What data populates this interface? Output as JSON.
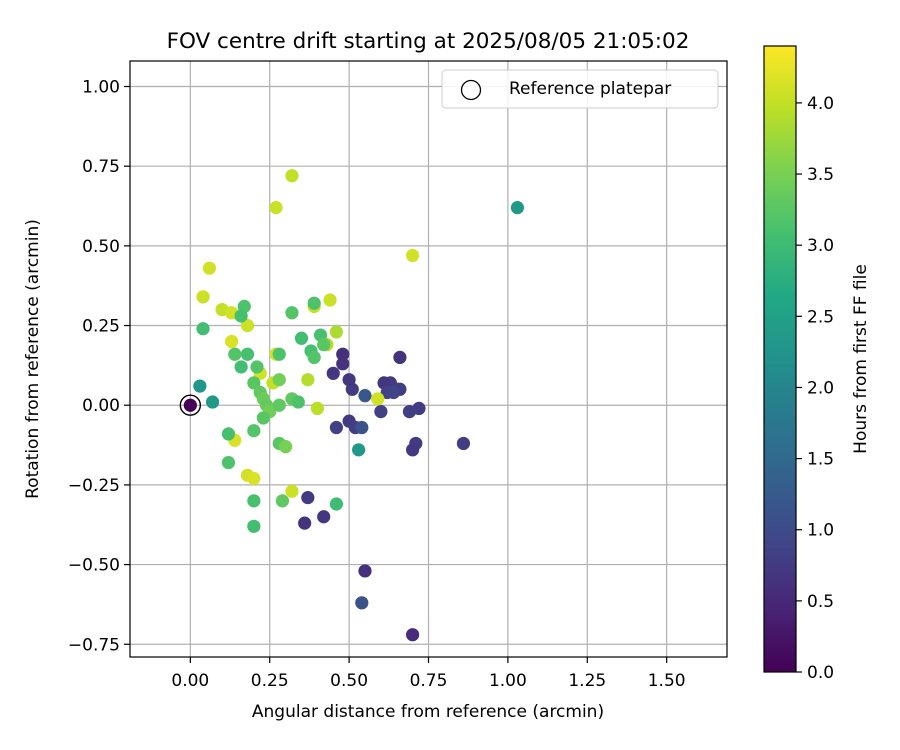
{
  "chart_data": {
    "type": "scatter",
    "title": "FOV centre drift starting at 2025/08/05 21:05:02",
    "xlabel": "Angular distance from reference (arcmin)",
    "ylabel": "Rotation from reference (arcmin)",
    "xlim": [
      -0.19,
      1.69
    ],
    "ylim": [
      -0.79,
      1.08
    ],
    "x_ticks": [
      0.0,
      0.25,
      0.5,
      0.75,
      1.0,
      1.25,
      1.5
    ],
    "x_tick_labels": [
      "0.00",
      "0.25",
      "0.50",
      "0.75",
      "1.00",
      "1.25",
      "1.50"
    ],
    "y_ticks": [
      1.0,
      0.75,
      0.5,
      0.25,
      0.0,
      -0.25,
      -0.5,
      -0.75
    ],
    "y_tick_labels": [
      "1.00",
      "0.75",
      "0.50",
      "0.25",
      "0.00",
      "−0.25",
      "−0.50",
      "−0.75"
    ],
    "grid": true,
    "legend": {
      "position": "top-right",
      "entries": [
        {
          "label": "Reference platepar",
          "marker": "hollow-circle"
        }
      ]
    },
    "colorbar": {
      "label": "Hours from first FF file",
      "colormap": "viridis",
      "range": [
        0.0,
        4.4
      ],
      "ticks": [
        0.0,
        0.5,
        1.0,
        1.5,
        2.0,
        2.5,
        3.0,
        3.5,
        4.0
      ],
      "tick_labels": [
        "0.0",
        "0.5",
        "1.0",
        "1.5",
        "2.0",
        "2.5",
        "3.0",
        "3.5",
        "4.0"
      ],
      "stops": [
        "#440154",
        "#482475",
        "#414487",
        "#355f8d",
        "#2a788e",
        "#21918c",
        "#22a884",
        "#44bf70",
        "#7ad151",
        "#bddf26",
        "#fde725"
      ]
    },
    "reference_point": {
      "x": 0.0,
      "y": 0.0
    },
    "points": [
      {
        "x": 0.0,
        "y": 0.0,
        "h": 0.02
      },
      {
        "x": 0.7,
        "y": -0.72,
        "h": 0.55
      },
      {
        "x": 0.55,
        "y": -0.52,
        "h": 0.6
      },
      {
        "x": 0.36,
        "y": -0.37,
        "h": 0.65
      },
      {
        "x": 0.42,
        "y": -0.35,
        "h": 0.7
      },
      {
        "x": 0.37,
        "y": -0.29,
        "h": 0.75
      },
      {
        "x": 0.54,
        "y": -0.62,
        "h": 1.1
      },
      {
        "x": 0.86,
        "y": -0.12,
        "h": 0.8
      },
      {
        "x": 0.71,
        "y": -0.12,
        "h": 0.75
      },
      {
        "x": 0.7,
        "y": -0.14,
        "h": 0.7
      },
      {
        "x": 0.72,
        "y": -0.01,
        "h": 0.75
      },
      {
        "x": 0.69,
        "y": -0.02,
        "h": 0.8
      },
      {
        "x": 0.65,
        "y": 0.05,
        "h": 0.7
      },
      {
        "x": 0.66,
        "y": 0.15,
        "h": 0.65
      },
      {
        "x": 0.63,
        "y": 0.07,
        "h": 0.75
      },
      {
        "x": 0.61,
        "y": 0.07,
        "h": 0.7
      },
      {
        "x": 0.62,
        "y": 0.04,
        "h": 0.85
      },
      {
        "x": 0.66,
        "y": 0.05,
        "h": 0.8
      },
      {
        "x": 0.64,
        "y": 0.04,
        "h": 0.9
      },
      {
        "x": 0.6,
        "y": -0.02,
        "h": 0.85
      },
      {
        "x": 0.55,
        "y": 0.03,
        "h": 1.2
      },
      {
        "x": 0.51,
        "y": 0.05,
        "h": 0.75
      },
      {
        "x": 0.5,
        "y": 0.08,
        "h": 0.7
      },
      {
        "x": 0.48,
        "y": 0.13,
        "h": 0.65
      },
      {
        "x": 0.48,
        "y": 0.16,
        "h": 0.6
      },
      {
        "x": 0.45,
        "y": 0.1,
        "h": 0.7
      },
      {
        "x": 0.5,
        "y": -0.05,
        "h": 0.75
      },
      {
        "x": 0.52,
        "y": -0.07,
        "h": 0.8
      },
      {
        "x": 0.46,
        "y": -0.07,
        "h": 0.85
      },
      {
        "x": 0.54,
        "y": -0.07,
        "h": 1.1
      },
      {
        "x": 0.53,
        "y": -0.14,
        "h": 2.35
      },
      {
        "x": 0.59,
        "y": 0.02,
        "h": 4.1
      },
      {
        "x": 0.46,
        "y": -0.31,
        "h": 3.0
      },
      {
        "x": 1.03,
        "y": 0.62,
        "h": 2.35
      },
      {
        "x": 0.7,
        "y": 0.47,
        "h": 4.1
      },
      {
        "x": 0.32,
        "y": 0.72,
        "h": 4.0
      },
      {
        "x": 0.27,
        "y": 0.62,
        "h": 4.05
      },
      {
        "x": 0.06,
        "y": 0.43,
        "h": 4.1
      },
      {
        "x": 0.04,
        "y": 0.34,
        "h": 4.05
      },
      {
        "x": 0.1,
        "y": 0.3,
        "h": 4.0
      },
      {
        "x": 0.13,
        "y": 0.29,
        "h": 4.1
      },
      {
        "x": 0.18,
        "y": 0.25,
        "h": 4.05
      },
      {
        "x": 0.13,
        "y": 0.2,
        "h": 4.15
      },
      {
        "x": 0.22,
        "y": 0.1,
        "h": 4.1
      },
      {
        "x": 0.26,
        "y": 0.07,
        "h": 4.0
      },
      {
        "x": 0.27,
        "y": 0.16,
        "h": 4.1
      },
      {
        "x": 0.14,
        "y": -0.11,
        "h": 4.15
      },
      {
        "x": 0.18,
        "y": -0.22,
        "h": 4.1
      },
      {
        "x": 0.2,
        "y": -0.23,
        "h": 4.15
      },
      {
        "x": 0.32,
        "y": -0.27,
        "h": 4.05
      },
      {
        "x": 0.39,
        "y": 0.31,
        "h": 4.0
      },
      {
        "x": 0.44,
        "y": 0.33,
        "h": 4.05
      },
      {
        "x": 0.4,
        "y": -0.01,
        "h": 3.95
      },
      {
        "x": 0.37,
        "y": 0.08,
        "h": 3.9
      },
      {
        "x": 0.43,
        "y": 0.19,
        "h": 3.9
      },
      {
        "x": 0.46,
        "y": 0.23,
        "h": 3.85
      },
      {
        "x": 0.04,
        "y": 0.24,
        "h": 3.05
      },
      {
        "x": 0.17,
        "y": 0.31,
        "h": 3.15
      },
      {
        "x": 0.16,
        "y": 0.28,
        "h": 3.1
      },
      {
        "x": 0.14,
        "y": 0.16,
        "h": 3.2
      },
      {
        "x": 0.18,
        "y": 0.16,
        "h": 3.1
      },
      {
        "x": 0.16,
        "y": 0.12,
        "h": 3.05
      },
      {
        "x": 0.21,
        "y": 0.12,
        "h": 3.2
      },
      {
        "x": 0.2,
        "y": 0.07,
        "h": 3.25
      },
      {
        "x": 0.22,
        "y": 0.04,
        "h": 3.3
      },
      {
        "x": 0.23,
        "y": 0.02,
        "h": 3.4
      },
      {
        "x": 0.24,
        "y": 0.0,
        "h": 3.35
      },
      {
        "x": 0.25,
        "y": -0.02,
        "h": 3.45
      },
      {
        "x": 0.28,
        "y": 0.0,
        "h": 3.3
      },
      {
        "x": 0.23,
        "y": -0.04,
        "h": 3.25
      },
      {
        "x": 0.2,
        "y": -0.08,
        "h": 3.2
      },
      {
        "x": 0.12,
        "y": -0.09,
        "h": 3.1
      },
      {
        "x": 0.12,
        "y": -0.18,
        "h": 3.15
      },
      {
        "x": 0.2,
        "y": -0.3,
        "h": 3.1
      },
      {
        "x": 0.2,
        "y": -0.38,
        "h": 3.05
      },
      {
        "x": 0.29,
        "y": -0.3,
        "h": 3.3
      },
      {
        "x": 0.28,
        "y": -0.12,
        "h": 3.25
      },
      {
        "x": 0.3,
        "y": -0.13,
        "h": 3.5
      },
      {
        "x": 0.28,
        "y": 0.08,
        "h": 3.45
      },
      {
        "x": 0.28,
        "y": 0.16,
        "h": 3.15
      },
      {
        "x": 0.32,
        "y": 0.29,
        "h": 3.2
      },
      {
        "x": 0.32,
        "y": 0.02,
        "h": 3.3
      },
      {
        "x": 0.34,
        "y": 0.01,
        "h": 3.15
      },
      {
        "x": 0.35,
        "y": 0.21,
        "h": 3.05
      },
      {
        "x": 0.38,
        "y": 0.17,
        "h": 3.1
      },
      {
        "x": 0.39,
        "y": 0.15,
        "h": 3.2
      },
      {
        "x": 0.39,
        "y": 0.32,
        "h": 3.15
      },
      {
        "x": 0.41,
        "y": 0.22,
        "h": 3.1
      },
      {
        "x": 0.42,
        "y": 0.19,
        "h": 3.25
      },
      {
        "x": 0.03,
        "y": 0.06,
        "h": 2.3
      },
      {
        "x": 0.07,
        "y": 0.01,
        "h": 2.35
      }
    ]
  }
}
